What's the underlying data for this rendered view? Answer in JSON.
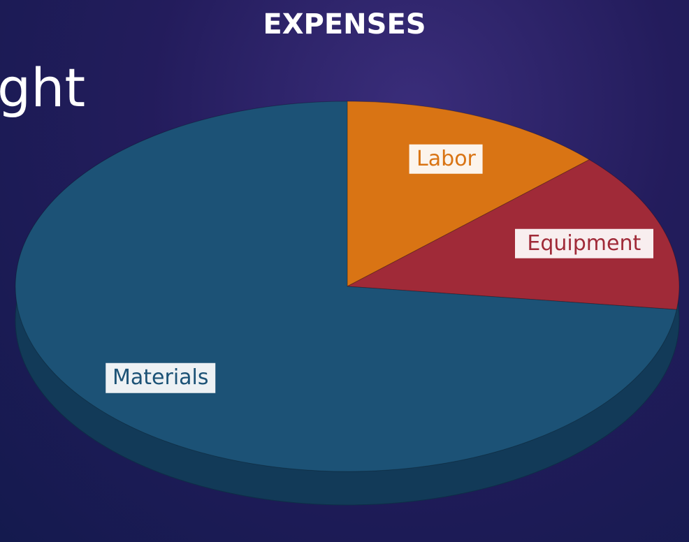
{
  "slide_text": "ght",
  "chart_data": {
    "type": "pie",
    "title": "EXPENSES",
    "categories": [
      "Labor",
      "Equipment",
      "Materials"
    ],
    "values": [
      13,
      14,
      73
    ],
    "colors": [
      "#d97414",
      "#a02a38",
      "#1c5276"
    ]
  }
}
